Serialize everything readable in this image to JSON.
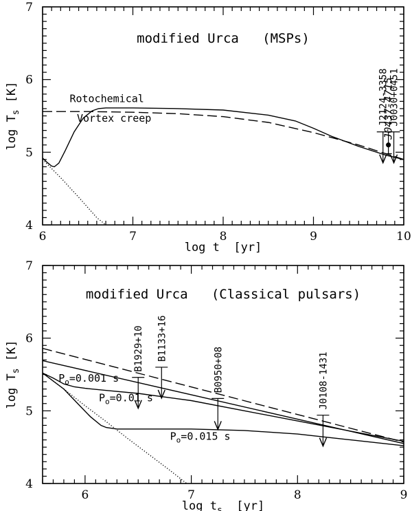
{
  "chart_data": [
    {
      "type": "line",
      "title": "modified Urca   (MSPs)",
      "xlabel": "log t  [yr]",
      "ylabel": "log T",
      "ylabel_sub": "s",
      "ylabel_unit": " [K]",
      "xlim": [
        6,
        10
      ],
      "ylim": [
        4,
        7
      ],
      "xticks": [
        "6",
        "7",
        "8",
        "9",
        "10"
      ],
      "yticks": [
        "4",
        "5",
        "6",
        "7"
      ],
      "grid": false,
      "series": [
        {
          "name": "Rotochemical",
          "style": "solid",
          "x": [
            6.0,
            6.05,
            6.1,
            6.13,
            6.18,
            6.25,
            6.35,
            6.45,
            6.55,
            6.62,
            6.7,
            7.0,
            7.5,
            8.0,
            8.5,
            8.8,
            9.0,
            9.2,
            9.5,
            9.8,
            10.0
          ],
          "y": [
            4.92,
            4.86,
            4.81,
            4.8,
            4.85,
            5.02,
            5.28,
            5.47,
            5.57,
            5.6,
            5.61,
            5.61,
            5.6,
            5.58,
            5.51,
            5.43,
            5.33,
            5.22,
            5.08,
            4.96,
            4.9
          ]
        },
        {
          "name": "Vortex creep",
          "style": "dashed",
          "x": [
            6.0,
            6.5,
            7.0,
            7.5,
            8.0,
            8.5,
            9.0,
            9.5,
            9.8,
            10.0
          ],
          "y": [
            5.56,
            5.56,
            5.55,
            5.53,
            5.49,
            5.41,
            5.27,
            5.1,
            4.98,
            4.9
          ]
        },
        {
          "name": "",
          "style": "dotted",
          "x": [
            6.0,
            6.2,
            6.4,
            6.6,
            6.7
          ],
          "y": [
            4.9,
            4.65,
            4.38,
            4.1,
            4.0
          ]
        }
      ],
      "annotations": [
        {
          "text": "Rotochemical",
          "x": 6.3,
          "y": 5.69
        },
        {
          "text": "Vortex creep",
          "x": 6.38,
          "y": 5.42
        }
      ],
      "observations": [
        {
          "name": "J2124-3358",
          "kind": "upper-limit",
          "x": 9.77,
          "y": 5.28,
          "italic": false
        },
        {
          "name": "J0437-4715",
          "kind": "point",
          "x": 9.83,
          "y": 5.1,
          "err": [
            4.98,
            5.28
          ],
          "italic": true
        },
        {
          "name": "J0030+0451",
          "kind": "upper-limit",
          "x": 9.89,
          "y": 5.28,
          "italic": false
        }
      ]
    },
    {
      "type": "line",
      "title": "modified Urca   (Classical pulsars)",
      "xlabel": "log t",
      "xlabel_sub": "s",
      "xlabel_unit": "  [yr]",
      "ylabel": "log T",
      "ylabel_sub": "s",
      "ylabel_unit": " [K]",
      "xlim": [
        5.6,
        9
      ],
      "ylim": [
        4,
        7
      ],
      "xticks": [
        "6",
        "7",
        "8",
        "9"
      ],
      "yticks": [
        "4",
        "5",
        "6",
        "7"
      ],
      "grid": false,
      "series": [
        {
          "name": "",
          "style": "dashed",
          "x": [
            5.6,
            9.0
          ],
          "y": [
            5.86,
            4.57
          ]
        },
        {
          "name": "",
          "style": "solid",
          "x": [
            5.6,
            9.0
          ],
          "y": [
            5.69,
            4.55
          ]
        },
        {
          "name": "P0=0.001 s",
          "style": "solid",
          "x": [
            5.6,
            5.7,
            5.8,
            5.9,
            6.0,
            6.2,
            6.5,
            7.0,
            7.5,
            8.0,
            8.5,
            9.0
          ],
          "y": [
            5.52,
            5.45,
            5.37,
            5.33,
            5.31,
            5.28,
            5.24,
            5.14,
            5.0,
            4.86,
            4.72,
            4.58
          ]
        },
        {
          "name": "P0=0.015 s",
          "style": "solid",
          "x": [
            5.6,
            5.8,
            5.95,
            6.05,
            6.15,
            6.2,
            6.3,
            6.5,
            7.0,
            7.5,
            8.0,
            8.5,
            9.0
          ],
          "y": [
            5.52,
            5.3,
            5.07,
            4.92,
            4.8,
            4.77,
            4.75,
            4.75,
            4.75,
            4.73,
            4.68,
            4.6,
            4.52
          ]
        },
        {
          "name": "",
          "style": "dotted",
          "x": [
            5.6,
            5.8,
            6.0,
            6.2,
            6.4,
            6.6,
            6.8,
            7.0,
            7.1
          ],
          "y": [
            5.52,
            5.3,
            5.07,
            4.85,
            4.62,
            4.4,
            4.18,
            3.95,
            3.85
          ]
        }
      ],
      "annotations": [
        {
          "text": "P",
          "sub": "o",
          "rest": "=0.001 s",
          "x": 5.75,
          "y": 5.4
        },
        {
          "text": "P",
          "sub": "o",
          "rest": "=0.01 s",
          "x": 6.13,
          "y": 5.13
        },
        {
          "text": "P",
          "sub": "o",
          "rest": "=0.015 s",
          "x": 6.8,
          "y": 4.6
        }
      ],
      "observations": [
        {
          "name": "B1929+10",
          "kind": "upper-limit",
          "x": 6.5,
          "y": 5.46,
          "italic": false
        },
        {
          "name": "B1133+16",
          "kind": "upper-limit",
          "x": 6.72,
          "y": 5.6,
          "italic": false
        },
        {
          "name": "B0950+08",
          "kind": "upper-limit",
          "x": 7.25,
          "y": 5.17,
          "italic": false
        },
        {
          "name": "J0108-1431",
          "kind": "upper-limit",
          "x": 8.24,
          "y": 4.94,
          "italic": false
        }
      ]
    }
  ]
}
